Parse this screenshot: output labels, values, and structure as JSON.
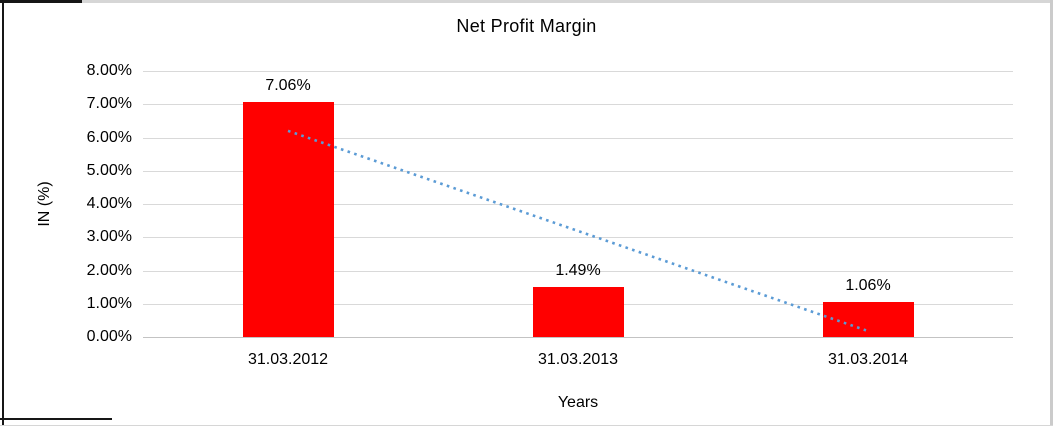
{
  "window": {
    "background": "#ffffff",
    "border_dark": "#161616",
    "border_light": "#d6d6d6"
  },
  "chart_data": {
    "type": "bar",
    "title": "Net Profit Margin",
    "xlabel": "Years",
    "ylabel": "IN (%)",
    "categories": [
      "31.03.2012",
      "31.03.2013",
      "31.03.2014"
    ],
    "values": [
      7.06,
      1.49,
      1.06
    ],
    "data_labels": [
      "7.06%",
      "1.49%",
      "1.06%"
    ],
    "ylim": [
      0,
      8
    ],
    "ytick_labels": [
      "8.00%",
      "7.00%",
      "6.00%",
      "5.00%",
      "4.00%",
      "3.00%",
      "2.00%",
      "1.00%",
      "0.00%"
    ],
    "grid": true,
    "legend": "none",
    "bar_color": "#ff0000",
    "gridline_color": "#d9d9d9",
    "text_color": "#000000",
    "trendline": {
      "type": "linear",
      "style": "dotted",
      "color": "#5b9bd5",
      "start_value_pct": 6.2,
      "end_value_pct": 0.2
    }
  }
}
